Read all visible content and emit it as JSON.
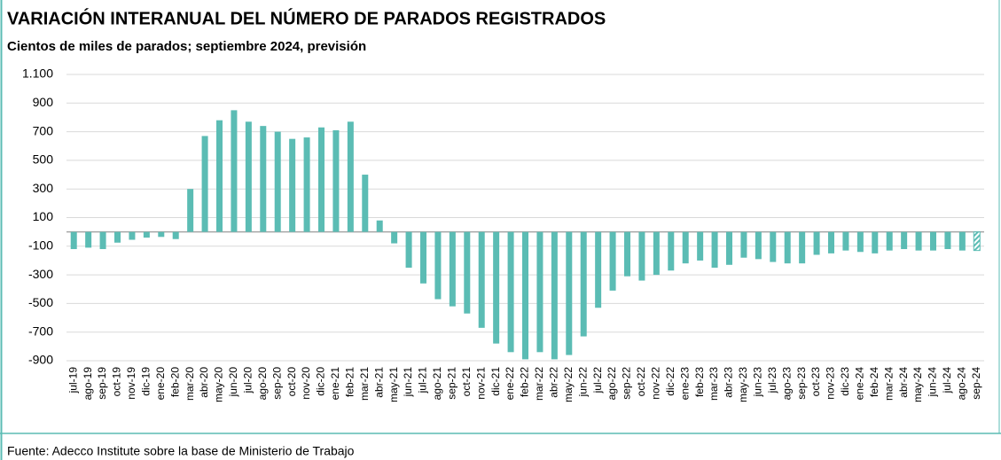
{
  "chart_data": {
    "type": "bar",
    "title": "VARIACIÓN INTERANUAL DEL NÚMERO DE PARADOS REGISTRADOS",
    "subtitle": "Cientos de miles de parados; septiembre 2024, previsión",
    "source": "Fuente: Adecco Institute sobre la base de Ministerio de Trabajo",
    "categories": [
      "jul-19",
      "ago-19",
      "sep-19",
      "oct-19",
      "nov-19",
      "dic-19",
      "ene-20",
      "feb-20",
      "mar-20",
      "abr-20",
      "may-20",
      "jun-20",
      "jul-20",
      "ago-20",
      "sep-20",
      "oct-20",
      "nov-20",
      "dic-20",
      "ene-21",
      "feb-21",
      "mar-21",
      "abr-21",
      "may-21",
      "jun-21",
      "jul-21",
      "ago-21",
      "sep-21",
      "oct-21",
      "nov-21",
      "dic-21",
      "ene-22",
      "feb-22",
      "mar-22",
      "abr-22",
      "may-22",
      "jun-22",
      "jul-22",
      "ago-22",
      "sep-22",
      "oct-22",
      "nov-22",
      "dic-22",
      "ene-23",
      "feb-23",
      "mar-23",
      "abr-23",
      "may-23",
      "jun-23",
      "jul-23",
      "ago-23",
      "sep-23",
      "oct-23",
      "nov-23",
      "dic-23",
      "ene-24",
      "feb-24",
      "mar-24",
      "abr-24",
      "may-24",
      "jun-24",
      "jul-24",
      "ago-24",
      "sep-24"
    ],
    "values": [
      -120,
      -110,
      -120,
      -75,
      -55,
      -40,
      -35,
      -50,
      300,
      670,
      780,
      850,
      770,
      740,
      700,
      650,
      660,
      730,
      710,
      770,
      400,
      80,
      -80,
      -250,
      -360,
      -470,
      -520,
      -570,
      -670,
      -780,
      -840,
      -890,
      -840,
      -890,
      -860,
      -730,
      -530,
      -410,
      -310,
      -340,
      -300,
      -270,
      -220,
      -200,
      -250,
      -230,
      -180,
      -190,
      -210,
      -220,
      -220,
      -160,
      -150,
      -130,
      -140,
      -150,
      -130,
      -120,
      -130,
      -130,
      -120,
      -130,
      -130
    ],
    "color": "#5bbcb4",
    "ylim": [
      -900,
      1100
    ],
    "yticks": [
      {
        "value": 1100,
        "label": "1.100"
      },
      900,
      700,
      500,
      300,
      100,
      -100,
      -300,
      -500,
      -700,
      -900
    ],
    "grid": true
  }
}
